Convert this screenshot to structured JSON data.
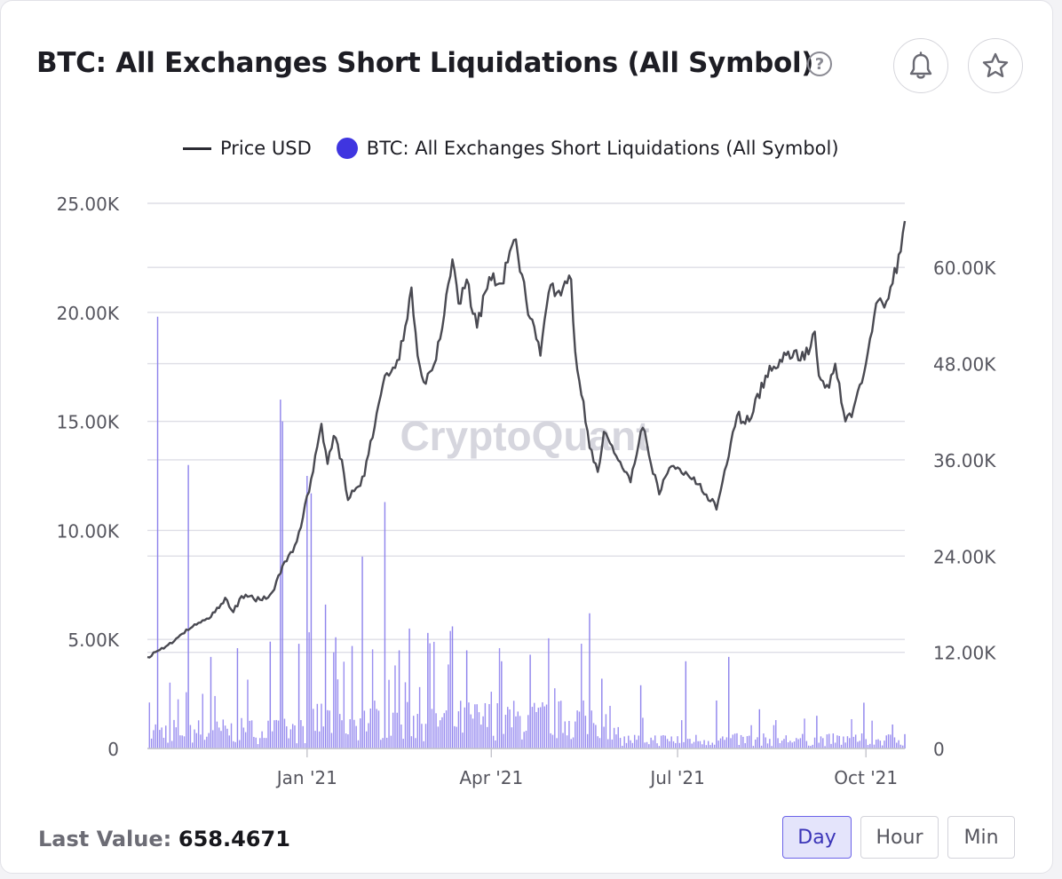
{
  "header": {
    "title": "BTC: All Exchanges Short Liquidations (All Symbol)",
    "help_icon": "question-circle-icon",
    "alert_icon": "bell-icon",
    "favorite_icon": "star-icon"
  },
  "legend": {
    "price_label": "Price USD",
    "series_label": "BTC: All Exchanges Short Liquidations (All Symbol)"
  },
  "watermark": "CryptoQuant",
  "colors": {
    "bars": "#9b8ff0",
    "bars_spike": "#8f84ec",
    "legend_dot": "#3f35e0",
    "price_line": "#4a4a52",
    "grid": "#dedee6",
    "accent": "#6c63e8"
  },
  "footer": {
    "last_value_label": "Last Value:",
    "last_value": "658.4671",
    "timeframes": [
      {
        "label": "Day",
        "active": true
      },
      {
        "label": "Hour",
        "active": false
      },
      {
        "label": "Min",
        "active": false
      }
    ]
  },
  "chart_data": {
    "type": "bar",
    "left_axis": {
      "label": "",
      "ylim": [
        0,
        25000
      ],
      "ticks": [
        0,
        5000,
        10000,
        15000,
        20000,
        25000
      ],
      "tick_labels": [
        "0",
        "5.00K",
        "10.00K",
        "15.00K",
        "20.00K",
        "25.00K"
      ]
    },
    "right_axis": {
      "label": "",
      "ylim": [
        0,
        68000
      ],
      "ticks": [
        0,
        12000,
        24000,
        36000,
        48000,
        60000
      ],
      "tick_labels": [
        "0",
        "12.00K",
        "24.00K",
        "36.00K",
        "48.00K",
        "60.00K"
      ]
    },
    "x_axis": {
      "range": [
        "2020-10-15",
        "2021-10-20"
      ],
      "ticks": [
        "2021-01-01",
        "2021-04-01",
        "2021-07-01",
        "2021-10-01"
      ],
      "tick_labels": [
        "Jan '21",
        "Apr '21",
        "Jul '21",
        "Oct '21"
      ]
    },
    "grid": true,
    "legend_position": "top-center",
    "series": [
      {
        "name": "Price USD",
        "axis": "right",
        "type": "line",
        "points": [
          [
            "2020-10-15",
            11400
          ],
          [
            "2020-10-25",
            12900
          ],
          [
            "2020-11-05",
            15000
          ],
          [
            "2020-11-12",
            16000
          ],
          [
            "2020-11-17",
            17000
          ],
          [
            "2020-11-22",
            18800
          ],
          [
            "2020-11-26",
            17000
          ],
          [
            "2020-11-30",
            19000
          ],
          [
            "2020-12-10",
            18500
          ],
          [
            "2020-12-15",
            19500
          ],
          [
            "2020-12-20",
            22800
          ],
          [
            "2020-12-25",
            24500
          ],
          [
            "2020-12-28",
            27000
          ],
          [
            "2021-01-02",
            32000
          ],
          [
            "2021-01-08",
            40500
          ],
          [
            "2021-01-11",
            35500
          ],
          [
            "2021-01-14",
            39000
          ],
          [
            "2021-01-18",
            36000
          ],
          [
            "2021-01-21",
            31000
          ],
          [
            "2021-01-25",
            32500
          ],
          [
            "2021-01-29",
            34000
          ],
          [
            "2021-02-08",
            46500
          ],
          [
            "2021-02-15",
            48500
          ],
          [
            "2021-02-21",
            57500
          ],
          [
            "2021-02-24",
            49000
          ],
          [
            "2021-02-28",
            45500
          ],
          [
            "2021-03-05",
            48500
          ],
          [
            "2021-03-13",
            61000
          ],
          [
            "2021-03-16",
            55500
          ],
          [
            "2021-03-20",
            58500
          ],
          [
            "2021-03-25",
            52500
          ],
          [
            "2021-03-31",
            58800
          ],
          [
            "2021-04-06",
            58000
          ],
          [
            "2021-04-13",
            63500
          ],
          [
            "2021-04-18",
            56000
          ],
          [
            "2021-04-25",
            49000
          ],
          [
            "2021-04-30",
            57800
          ],
          [
            "2021-05-05",
            56500
          ],
          [
            "2021-05-10",
            58500
          ],
          [
            "2021-05-12",
            49500
          ],
          [
            "2021-05-19",
            37500
          ],
          [
            "2021-05-23",
            34500
          ],
          [
            "2021-05-26",
            39500
          ],
          [
            "2021-06-01",
            36500
          ],
          [
            "2021-06-08",
            33200
          ],
          [
            "2021-06-14",
            40000
          ],
          [
            "2021-06-22",
            31700
          ],
          [
            "2021-06-27",
            35000
          ],
          [
            "2021-07-05",
            34500
          ],
          [
            "2021-07-12",
            33000
          ],
          [
            "2021-07-20",
            29800
          ],
          [
            "2021-07-25",
            35400
          ],
          [
            "2021-07-30",
            41500
          ],
          [
            "2021-08-05",
            40800
          ],
          [
            "2021-08-13",
            46500
          ],
          [
            "2021-08-20",
            48500
          ],
          [
            "2021-08-24",
            49500
          ],
          [
            "2021-09-01",
            48500
          ],
          [
            "2021-09-06",
            52000
          ],
          [
            "2021-09-08",
            46500
          ],
          [
            "2021-09-13",
            45000
          ],
          [
            "2021-09-16",
            48000
          ],
          [
            "2021-09-21",
            40800
          ],
          [
            "2021-09-25",
            42500
          ],
          [
            "2021-10-01",
            48000
          ],
          [
            "2021-10-06",
            55500
          ],
          [
            "2021-10-10",
            55000
          ],
          [
            "2021-10-14",
            58000
          ],
          [
            "2021-10-18",
            62000
          ],
          [
            "2021-10-20",
            65800
          ]
        ]
      },
      {
        "name": "BTC: All Exchanges Short Liquidations (All Symbol)",
        "axis": "left",
        "type": "bar",
        "bar_interval": "day",
        "baseline_levels": [
          {
            "from": "2020-10-15",
            "to": "2020-12-31",
            "value": 800
          },
          {
            "from": "2021-01-01",
            "to": "2021-05-31",
            "value": 1300
          },
          {
            "from": "2021-06-01",
            "to": "2021-10-20",
            "value": 400
          }
        ],
        "spikes": [
          [
            "2020-10-20",
            19800
          ],
          [
            "2020-11-04",
            13000
          ],
          [
            "2020-11-15",
            4200
          ],
          [
            "2020-11-28",
            4600
          ],
          [
            "2020-12-14",
            4900
          ],
          [
            "2020-12-19",
            16000
          ],
          [
            "2020-12-20",
            15000
          ],
          [
            "2020-12-28",
            4800
          ],
          [
            "2021-01-01",
            12500
          ],
          [
            "2021-01-03",
            11700
          ],
          [
            "2021-01-10",
            6600
          ],
          [
            "2021-01-15",
            5100
          ],
          [
            "2021-01-23",
            4700
          ],
          [
            "2021-01-28",
            8800
          ],
          [
            "2021-02-08",
            11300
          ],
          [
            "2021-02-15",
            4500
          ],
          [
            "2021-02-20",
            5500
          ],
          [
            "2021-03-01",
            5300
          ],
          [
            "2021-03-13",
            5600
          ],
          [
            "2021-03-20",
            4500
          ],
          [
            "2021-04-06",
            4000
          ],
          [
            "2021-04-20",
            4300
          ],
          [
            "2021-05-19",
            6200
          ],
          [
            "2021-05-25",
            3200
          ],
          [
            "2021-06-13",
            2900
          ],
          [
            "2021-07-05",
            4000
          ],
          [
            "2021-07-20",
            2200
          ],
          [
            "2021-07-26",
            4200
          ],
          [
            "2021-08-10",
            1800
          ],
          [
            "2021-09-07",
            1500
          ],
          [
            "2021-09-30",
            2100
          ],
          [
            "2021-10-14",
            1100
          ],
          [
            "2021-10-20",
            658.4671
          ]
        ]
      }
    ]
  }
}
